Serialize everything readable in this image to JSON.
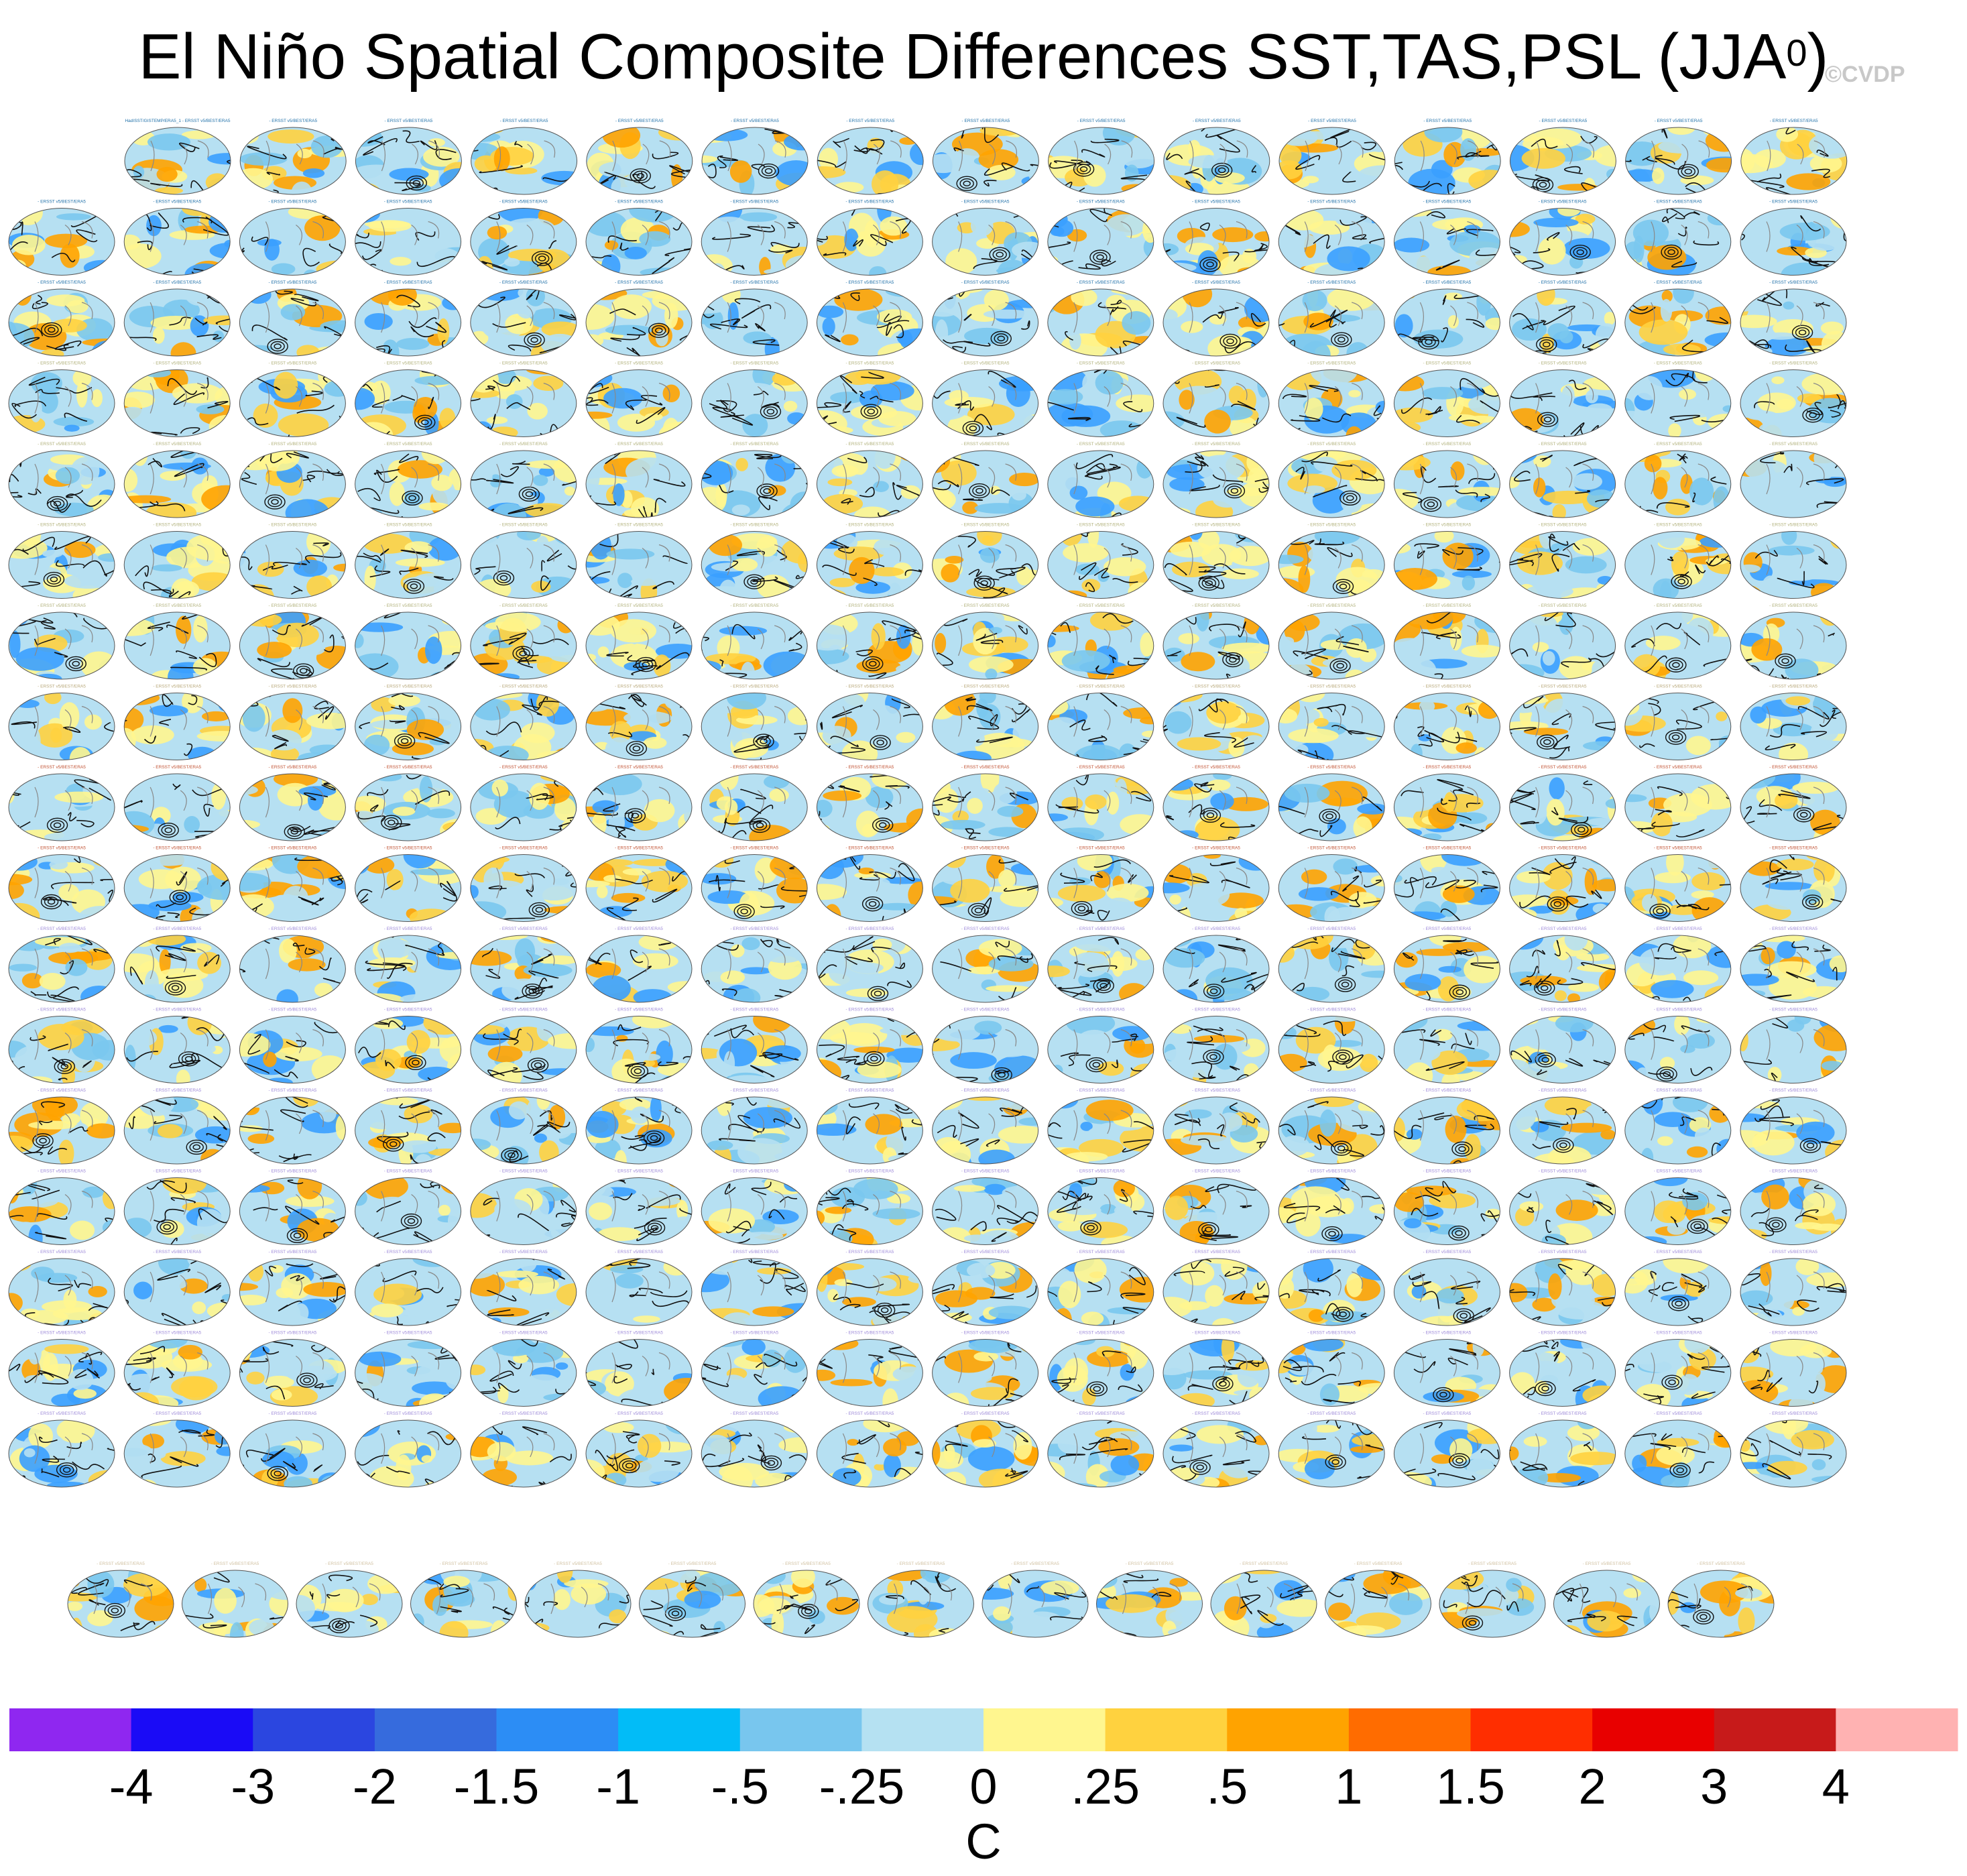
{
  "title": {
    "main": "El Niño Spatial Composite Differences SST,TAS,PSL (JJA",
    "superscript": "0",
    "close": ")"
  },
  "watermark": "©CVDP",
  "panel_grid": {
    "rows": 18,
    "panels_per_row": [
      15,
      16,
      16,
      16,
      16,
      16,
      16,
      16,
      16,
      16,
      16,
      16,
      16,
      16,
      16,
      16,
      16,
      15
    ],
    "first_panel_label": "HadISST/GISTEMP/ERA5_1 - ERSST v5/BEST/ERA5",
    "panel_label_suffix": "- ERSST v5/BEST/ERA5",
    "label_colors": [
      "#1e6fa8",
      "#1e6fa8",
      "#1e6fa8",
      "#b0b07a",
      "#b0b07a",
      "#b0b07a",
      "#b0b07a",
      "#b8a87a",
      "#c05030",
      "#c05030",
      "#9c88d8",
      "#9c88d8",
      "#9c88d8",
      "#9c88d8",
      "#9c88d8",
      "#9c88d8",
      "#9c88d8",
      "#d0c0a0"
    ],
    "map_fill_colors": [
      "#fff68f",
      "#b6e0f2",
      "#7ac8ee",
      "#ffd23f",
      "#3aa0ff",
      "#ffa300",
      "#fff68f",
      "#b6e0f2"
    ]
  },
  "chart_data": {
    "type": "heatmap",
    "title": "El Niño Spatial Composite Differences SST,TAS,PSL (JJA⁰)",
    "description_fields": [
      "SST",
      "TAS",
      "PSL"
    ],
    "season": "JJA",
    "colorbar": {
      "unit": "C",
      "tick_labels": [
        "-4",
        "-3",
        "-2",
        "-1.5",
        "-1",
        "-.5",
        "-.25",
        "0",
        ".25",
        ".5",
        "1",
        "1.5",
        "2",
        "3",
        "4"
      ],
      "colors": [
        "#8f27f0",
        "#1a0bf6",
        "#2b46e0",
        "#366bdd",
        "#2c8df5",
        "#02bcf7",
        "#78c6ee",
        "#b5e1f2",
        "#fff68f",
        "#ffd23f",
        "#ffa300",
        "#ff6c00",
        "#ff2e00",
        "#e80000",
        "#c71a1a",
        "#ffb2b2"
      ]
    }
  }
}
